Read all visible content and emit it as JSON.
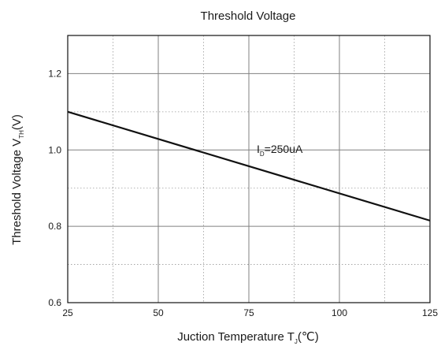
{
  "chart_data": {
    "type": "line",
    "title": "Threshold Voltage",
    "xlabel": {
      "main": "Juction Temperature T",
      "sub": "J",
      "suffix": "(℃)"
    },
    "ylabel": {
      "main": "Threshold Voltage V",
      "sub": "TH",
      "suffix": "(V)"
    },
    "xlim": [
      25,
      125
    ],
    "ylim": [
      0.6,
      1.3
    ],
    "x_ticks": [
      25,
      50,
      75,
      100,
      125
    ],
    "x_tick_labels": [
      "25",
      "50",
      "75",
      "100",
      "125"
    ],
    "y_ticks": [
      0.6,
      0.8,
      1.0,
      1.2
    ],
    "y_tick_labels": [
      "0.6",
      "0.8",
      "1.0",
      "1.2"
    ],
    "x_minor_grid": [
      37.5,
      62.5,
      87.5,
      112.5
    ],
    "y_minor_grid": [
      0.7,
      0.9,
      1.1
    ],
    "grid": true,
    "series": [
      {
        "x": [
          25,
          125
        ],
        "y": [
          1.1,
          0.815
        ],
        "color": "#111111"
      }
    ],
    "annotation": {
      "main": "I",
      "sub": "D",
      "suffix": "=250uA",
      "x": 77,
      "y": 1.0
    }
  }
}
